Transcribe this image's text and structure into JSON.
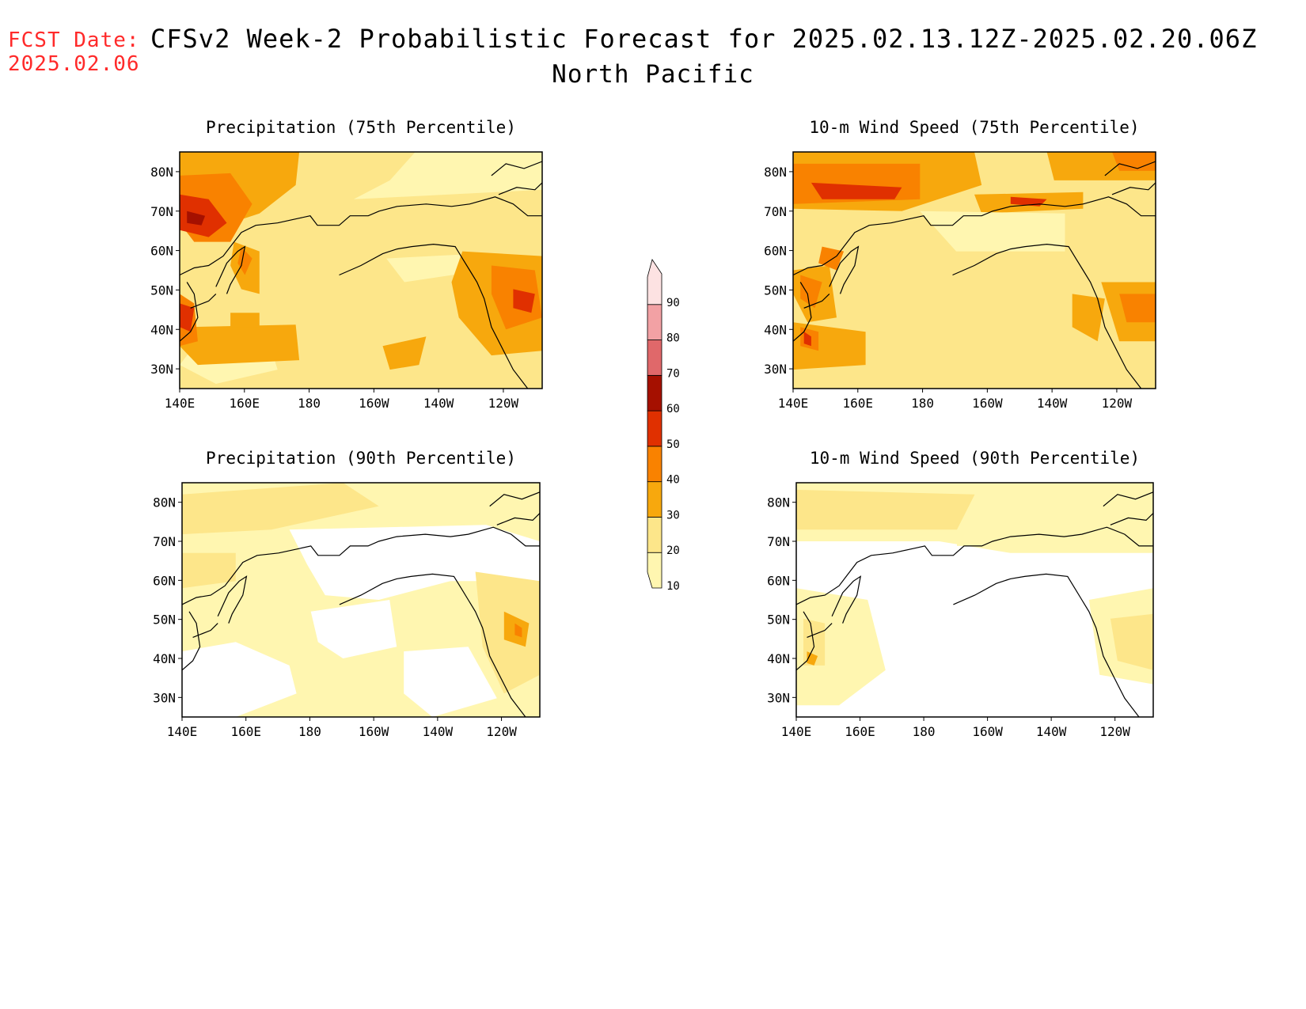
{
  "header": {
    "fcst_label": "FCST Date:",
    "fcst_date": "2025.02.06",
    "title": "CFSv2 Week-2 Probabilistic Forecast for 2025.02.13.12Z-2025.02.20.06Z",
    "subtitle": "North Pacific"
  },
  "colorbar": {
    "levels": [
      "10",
      "20",
      "30",
      "40",
      "50",
      "60",
      "70",
      "80",
      "90"
    ],
    "colors": [
      "#fff6b0",
      "#fde68a",
      "#f7a80d",
      "#f98200",
      "#e03000",
      "#a51000",
      "#e0686a",
      "#f2a1a4",
      "#fde2e2"
    ]
  },
  "palette": {
    "c1": "#fff6b0",
    "c2": "#fde68a",
    "c3": "#f7a80d",
    "c4": "#f98200",
    "c5": "#e03000",
    "c6": "#a51000",
    "coast": "#000000"
  },
  "axes": {
    "lon_labels": [
      "140E",
      "160E",
      "180",
      "160W",
      "140W",
      "120W"
    ],
    "lat_labels": [
      "80N",
      "70N",
      "60N",
      "50N",
      "40N",
      "30N"
    ],
    "lon_range": [
      140,
      250
    ],
    "lat_range": [
      25,
      85
    ]
  },
  "panels": [
    {
      "id": "precip75",
      "title": "Precipitation (75th Percentile)",
      "background": "c2"
    },
    {
      "id": "wind75",
      "title": "10-m Wind Speed (75th Percentile)",
      "background": "c2"
    },
    {
      "id": "precip90",
      "title": "Precipitation (90th Percentile)",
      "background": "c1"
    },
    {
      "id": "wind90",
      "title": "10-m Wind Speed (90th Percentile)",
      "background": "white"
    }
  ]
}
